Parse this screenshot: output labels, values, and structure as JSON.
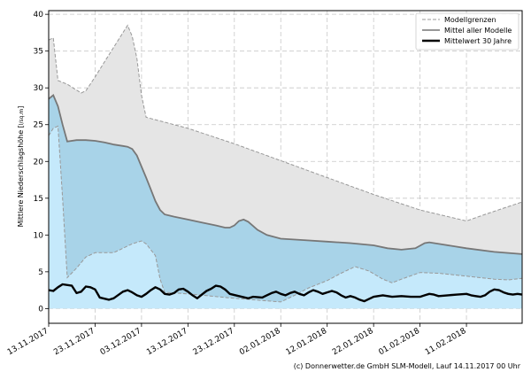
{
  "chart_data": {
    "type": "area",
    "ylabel": "Mittlere Niederschlagshöhe [l/sq.m]",
    "ylabel_unit": "l/sq.m",
    "ylim": [
      -2,
      40.5
    ],
    "yticks": [
      0,
      5,
      10,
      15,
      20,
      25,
      30,
      35,
      40
    ],
    "x_start": "13.11.2017",
    "x_end": "23.02.2018",
    "xticks": [
      "13.11.2017",
      "23.11.2017",
      "03.12.2017",
      "13.12.2017",
      "23.12.2017",
      "02.01.2018",
      "12.01.2018",
      "22.01.2018",
      "01.02.2018",
      "11.02.2018"
    ],
    "grid": true,
    "legend_position": "top-right",
    "legend": [
      "Modellgrenzen",
      "Mittel aller Modelle",
      "Mittelwert 30 Jahre"
    ],
    "colors": {
      "outer_band": "#e5e5e5",
      "inner_band": "#a8d3e8",
      "lower_band": "#c5e9fb",
      "bounds_line": "#999999",
      "mean_line": "#777777",
      "climate_line": "#000000",
      "grid": "#c8c8c8"
    },
    "upper_bound": [
      [
        "13.11.2017",
        36.5
      ],
      [
        "14.11.2017",
        36.8
      ],
      [
        "15.11.2017",
        31.0
      ],
      [
        "17.11.2017",
        30.5
      ],
      [
        "19.11.2017",
        29.7
      ],
      [
        "20.11.2017",
        29.3
      ],
      [
        "21.11.2017",
        29.6
      ],
      [
        "23.11.2017",
        31.5
      ],
      [
        "25.11.2017",
        33.5
      ],
      [
        "27.11.2017",
        35.5
      ],
      [
        "29.11.2017",
        37.5
      ],
      [
        "30.11.2017",
        38.5
      ],
      [
        "01.12.2017",
        37.0
      ],
      [
        "02.12.2017",
        34.0
      ],
      [
        "03.12.2017",
        29.0
      ],
      [
        "04.12.2017",
        26.0
      ],
      [
        "13.12.2017",
        24.5
      ],
      [
        "23.12.2017",
        22.4
      ],
      [
        "02.01.2018",
        20.1
      ],
      [
        "12.01.2018",
        17.8
      ],
      [
        "22.01.2018",
        15.5
      ],
      [
        "01.02.2018",
        13.4
      ],
      [
        "11.02.2018",
        11.9
      ],
      [
        "15.02.2018",
        12.8
      ],
      [
        "23.02.2018",
        14.5
      ]
    ],
    "lower_bound": [
      [
        "13.11.2017",
        23.5
      ],
      [
        "14.11.2017",
        24.5
      ],
      [
        "15.11.2017",
        24.8
      ],
      [
        "16.11.2017",
        15.0
      ],
      [
        "17.11.2017",
        4.2
      ],
      [
        "19.11.2017",
        5.5
      ],
      [
        "21.11.2017",
        7.0
      ],
      [
        "23.11.2017",
        7.6
      ],
      [
        "25.11.2017",
        7.6
      ],
      [
        "27.11.2017",
        7.6
      ],
      [
        "29.11.2017",
        8.2
      ],
      [
        "01.12.2017",
        8.8
      ],
      [
        "03.12.2017",
        9.2
      ],
      [
        "04.12.2017",
        8.8
      ],
      [
        "06.12.2017",
        7.2
      ],
      [
        "07.12.2017",
        4.0
      ],
      [
        "08.12.2017",
        2.2
      ],
      [
        "13.12.2017",
        2.0
      ],
      [
        "23.12.2017",
        1.4
      ],
      [
        "02.01.2018",
        0.9
      ],
      [
        "05.01.2018",
        1.8
      ],
      [
        "08.01.2018",
        2.8
      ],
      [
        "12.01.2018",
        3.8
      ],
      [
        "15.01.2018",
        4.8
      ],
      [
        "18.01.2018",
        5.7
      ],
      [
        "21.01.2018",
        5.1
      ],
      [
        "24.01.2018",
        4.0
      ],
      [
        "26.01.2018",
        3.5
      ],
      [
        "28.01.2018",
        4.0
      ],
      [
        "01.02.2018",
        4.9
      ],
      [
        "05.02.2018",
        4.8
      ],
      [
        "11.02.2018",
        4.4
      ],
      [
        "17.02.2018",
        4.0
      ],
      [
        "20.02.2018",
        3.9
      ],
      [
        "23.02.2018",
        4.1
      ]
    ],
    "mean_all_models": [
      [
        "13.11.2017",
        28.5
      ],
      [
        "14.11.2017",
        29.0
      ],
      [
        "15.11.2017",
        27.5
      ],
      [
        "16.11.2017",
        25.0
      ],
      [
        "17.11.2017",
        22.7
      ],
      [
        "19.11.2017",
        22.9
      ],
      [
        "21.11.2017",
        22.9
      ],
      [
        "23.11.2017",
        22.8
      ],
      [
        "25.11.2017",
        22.6
      ],
      [
        "27.11.2017",
        22.3
      ],
      [
        "29.11.2017",
        22.1
      ],
      [
        "30.11.2017",
        22.0
      ],
      [
        "01.12.2017",
        21.7
      ],
      [
        "02.12.2017",
        20.8
      ],
      [
        "03.12.2017",
        19.3
      ],
      [
        "04.12.2017",
        17.8
      ],
      [
        "05.12.2017",
        16.2
      ],
      [
        "06.12.2017",
        14.6
      ],
      [
        "07.12.2017",
        13.4
      ],
      [
        "08.12.2017",
        12.8
      ],
      [
        "10.12.2017",
        12.5
      ],
      [
        "13.12.2017",
        12.1
      ],
      [
        "16.12.2017",
        11.7
      ],
      [
        "19.12.2017",
        11.3
      ],
      [
        "21.12.2017",
        11.0
      ],
      [
        "22.12.2017",
        11.0
      ],
      [
        "23.12.2017",
        11.3
      ],
      [
        "24.12.2017",
        11.9
      ],
      [
        "25.12.2017",
        12.1
      ],
      [
        "26.12.2017",
        11.8
      ],
      [
        "28.12.2017",
        10.7
      ],
      [
        "30.12.2017",
        10.0
      ],
      [
        "02.01.2018",
        9.5
      ],
      [
        "07.01.2018",
        9.3
      ],
      [
        "12.01.2018",
        9.1
      ],
      [
        "17.01.2018",
        8.9
      ],
      [
        "22.01.2018",
        8.6
      ],
      [
        "25.01.2018",
        8.2
      ],
      [
        "28.01.2018",
        8.0
      ],
      [
        "31.01.2018",
        8.2
      ],
      [
        "02.02.2018",
        8.9
      ],
      [
        "03.02.2018",
        9.0
      ],
      [
        "06.02.2018",
        8.7
      ],
      [
        "11.02.2018",
        8.2
      ],
      [
        "17.02.2018",
        7.7
      ],
      [
        "23.02.2018",
        7.4
      ]
    ],
    "mean_30_years": [
      [
        "13.11.2017",
        2.5
      ],
      [
        "14.11.2017",
        2.4
      ],
      [
        "15.11.2017",
        2.9
      ],
      [
        "16.11.2017",
        3.3
      ],
      [
        "18.11.2017",
        3.1
      ],
      [
        "19.11.2017",
        2.1
      ],
      [
        "20.11.2017",
        2.3
      ],
      [
        "21.11.2017",
        3.0
      ],
      [
        "22.11.2017",
        2.9
      ],
      [
        "23.11.2017",
        2.6
      ],
      [
        "24.11.2017",
        1.5
      ],
      [
        "26.11.2017",
        1.2
      ],
      [
        "27.11.2017",
        1.4
      ],
      [
        "29.11.2017",
        2.3
      ],
      [
        "30.11.2017",
        2.5
      ],
      [
        "01.12.2017",
        2.2
      ],
      [
        "02.12.2017",
        1.8
      ],
      [
        "03.12.2017",
        1.6
      ],
      [
        "04.12.2017",
        2.0
      ],
      [
        "05.12.2017",
        2.5
      ],
      [
        "06.12.2017",
        2.9
      ],
      [
        "07.12.2017",
        2.6
      ],
      [
        "08.12.2017",
        2.0
      ],
      [
        "09.12.2017",
        1.9
      ],
      [
        "10.12.2017",
        2.1
      ],
      [
        "11.12.2017",
        2.6
      ],
      [
        "12.12.2017",
        2.7
      ],
      [
        "13.12.2017",
        2.3
      ],
      [
        "14.12.2017",
        1.8
      ],
      [
        "15.12.2017",
        1.4
      ],
      [
        "16.12.2017",
        1.9
      ],
      [
        "17.12.2017",
        2.4
      ],
      [
        "18.12.2017",
        2.7
      ],
      [
        "19.12.2017",
        3.1
      ],
      [
        "20.12.2017",
        3.0
      ],
      [
        "21.12.2017",
        2.6
      ],
      [
        "22.12.2017",
        2.0
      ],
      [
        "24.12.2017",
        1.7
      ],
      [
        "26.12.2017",
        1.4
      ],
      [
        "27.12.2017",
        1.6
      ],
      [
        "29.12.2017",
        1.5
      ],
      [
        "30.12.2017",
        1.8
      ],
      [
        "31.12.2017",
        2.1
      ],
      [
        "01.01.2018",
        2.3
      ],
      [
        "02.01.2018",
        2.0
      ],
      [
        "03.01.2018",
        1.8
      ],
      [
        "04.01.2018",
        2.1
      ],
      [
        "05.01.2018",
        2.3
      ],
      [
        "06.01.2018",
        2.0
      ],
      [
        "07.01.2018",
        1.8
      ],
      [
        "08.01.2018",
        2.2
      ],
      [
        "09.01.2018",
        2.5
      ],
      [
        "10.01.2018",
        2.3
      ],
      [
        "11.01.2018",
        2.0
      ],
      [
        "12.01.2018",
        2.2
      ],
      [
        "13.01.2018",
        2.4
      ],
      [
        "14.01.2018",
        2.2
      ],
      [
        "15.01.2018",
        1.8
      ],
      [
        "16.01.2018",
        1.5
      ],
      [
        "17.01.2018",
        1.7
      ],
      [
        "18.01.2018",
        1.5
      ],
      [
        "19.01.2018",
        1.2
      ],
      [
        "20.01.2018",
        1.0
      ],
      [
        "21.01.2018",
        1.3
      ],
      [
        "22.01.2018",
        1.6
      ],
      [
        "24.01.2018",
        1.8
      ],
      [
        "26.01.2018",
        1.6
      ],
      [
        "28.01.2018",
        1.7
      ],
      [
        "30.01.2018",
        1.6
      ],
      [
        "01.02.2018",
        1.6
      ],
      [
        "02.02.2018",
        1.8
      ],
      [
        "03.02.2018",
        2.0
      ],
      [
        "04.02.2018",
        1.9
      ],
      [
        "05.02.2018",
        1.7
      ],
      [
        "07.02.2018",
        1.8
      ],
      [
        "09.02.2018",
        1.9
      ],
      [
        "11.02.2018",
        2.0
      ],
      [
        "12.02.2018",
        1.8
      ],
      [
        "13.02.2018",
        1.7
      ],
      [
        "14.02.2018",
        1.6
      ],
      [
        "15.02.2018",
        1.8
      ],
      [
        "16.02.2018",
        2.3
      ],
      [
        "17.02.2018",
        2.6
      ],
      [
        "18.02.2018",
        2.5
      ],
      [
        "19.02.2018",
        2.2
      ],
      [
        "20.02.2018",
        2.0
      ],
      [
        "21.02.2018",
        1.9
      ],
      [
        "22.02.2018",
        2.0
      ],
      [
        "23.02.2018",
        1.9
      ]
    ]
  },
  "credit": "(c) Donnerwetter.de GmbH SLM-Modell, Lauf 14.11.2017 00 Uhr"
}
